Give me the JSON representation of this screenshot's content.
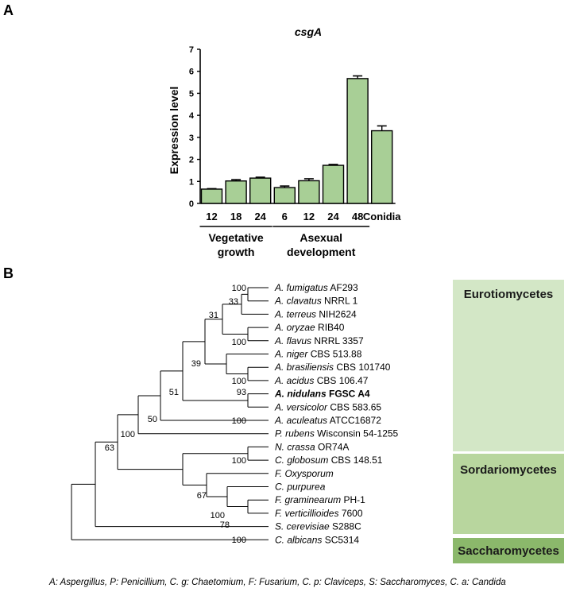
{
  "panel_a": {
    "letter": "A",
    "chart_data": {
      "type": "bar",
      "title": "csgA",
      "xlabel": "",
      "ylabel": "Expression level",
      "ylim": [
        0,
        7
      ],
      "yticks": [
        0,
        1,
        2,
        3,
        4,
        5,
        6,
        7
      ],
      "categories": [
        "12",
        "18",
        "24",
        "6",
        "12",
        "24",
        "48",
        "Conidia"
      ],
      "values": [
        0.65,
        1.02,
        1.15,
        0.72,
        1.03,
        1.73,
        5.67,
        3.3
      ],
      "errors": [
        0.02,
        0.06,
        0.04,
        0.07,
        0.09,
        0.04,
        0.12,
        0.22
      ],
      "groups": [
        {
          "label_line1": "Vegetative",
          "label_line2": "growth",
          "members": [
            0,
            1,
            2
          ]
        },
        {
          "label_line1": "Asexual",
          "label_line2": "development",
          "members": [
            3,
            4,
            5,
            6
          ]
        }
      ],
      "bar_color": "#a8cf96",
      "grid": false,
      "legend": "none"
    }
  },
  "panel_b": {
    "letter": "B",
    "taxa": [
      {
        "species": "A. fumigatus",
        "strain": "AF293"
      },
      {
        "species": "A. clavatus",
        "strain": "NRRL 1"
      },
      {
        "species": "A. terreus",
        "strain": "NIH2624"
      },
      {
        "species": "A. oryzae",
        "strain": "RIB40"
      },
      {
        "species": "A. flavus",
        "strain": "NRRL 3357"
      },
      {
        "species": "A. niger",
        "strain": "CBS 513.88"
      },
      {
        "species": "A. brasiliensis",
        "strain": "CBS 101740"
      },
      {
        "species": "A. acidus",
        "strain": "CBS 106.47"
      },
      {
        "species": "A. nidulans",
        "strain": "FGSC A4",
        "highlight": true
      },
      {
        "species": "A. versicolor",
        "strain": "CBS 583.65"
      },
      {
        "species": "A. aculeatus",
        "strain": "ATCC16872"
      },
      {
        "species": "P. rubens",
        "strain": "Wisconsin 54-1255"
      },
      {
        "species": "N. crassa",
        "strain": "OR74A"
      },
      {
        "species": "C. globosum",
        "strain": "CBS 148.51"
      },
      {
        "species": "F. Oxysporum",
        "strain": ""
      },
      {
        "species": "C. purpurea",
        "strain": ""
      },
      {
        "species": "F.  graminearum",
        "strain": "PH-1"
      },
      {
        "species": "F. verticillioides",
        "strain": "7600"
      },
      {
        "species": "S. cerevisiae",
        "strain": "S288C"
      },
      {
        "species": "C. albicans",
        "strain": "SC5314"
      }
    ],
    "bootstrap": [
      "100",
      "33",
      "31",
      "100",
      "39",
      "100",
      "93",
      "51",
      "100",
      "50",
      "100",
      "63",
      "100",
      "67",
      "100",
      "78",
      "100"
    ],
    "classes": [
      {
        "name": "Eurotiomycetes",
        "color": "#d3e7c6"
      },
      {
        "name": "Sordariomycetes",
        "color": "#b8d69e"
      },
      {
        "name": "Saccharomycetes",
        "color": "#8bb86b"
      }
    ],
    "highlight_color": "#4a8c2a",
    "footnote": "A: Aspergillus, P: Penicillium, C. g: Chaetomium, F: Fusarium, C. p: Claviceps, S: Saccharomyces, C. a: Candida"
  }
}
